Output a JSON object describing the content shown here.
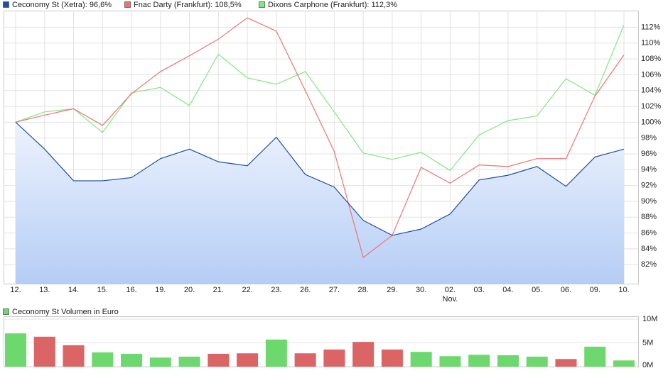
{
  "chart_data": [
    {
      "type": "line",
      "categories": [
        "12.",
        "13.",
        "14.",
        "15.",
        "16.",
        "19.",
        "20.",
        "21.",
        "22.",
        "23.",
        "26.",
        "27.",
        "28.",
        "29.",
        "30.",
        "02.",
        "03.",
        "04.",
        "05.",
        "06.",
        "09.",
        "10."
      ],
      "category_sublabels": [
        null,
        null,
        null,
        null,
        null,
        null,
        null,
        null,
        null,
        null,
        null,
        null,
        null,
        null,
        null,
        "Nov.",
        null,
        null,
        null,
        null,
        null,
        null
      ],
      "series": [
        {
          "name": "Ceconomy St (Xetra): 96,6%",
          "color": "#1f4f9e",
          "fill": true,
          "values": [
            100,
            96.6,
            92.6,
            92.6,
            93.0,
            95.4,
            96.6,
            95.0,
            94.5,
            98.1,
            93.4,
            91.8,
            87.6,
            85.7,
            86.5,
            88.4,
            92.7,
            93.3,
            94.4,
            91.9,
            95.6,
            96.6
          ]
        },
        {
          "name": "Fnac Darty (Frankfurt): 108,5%",
          "color": "#f07272",
          "fill": false,
          "values": [
            100,
            100.9,
            101.7,
            99.6,
            103.6,
            106.4,
            108.4,
            110.5,
            113.2,
            111.5,
            104.0,
            96.3,
            82.9,
            85.7,
            94.3,
            92.3,
            94.6,
            94.4,
            95.4,
            95.4,
            103.3,
            108.5
          ]
        },
        {
          "name": "Dixons Carphone (Frankfurt): 112,3%",
          "color": "#7fe87f",
          "fill": false,
          "values": [
            100,
            101.3,
            101.7,
            98.7,
            103.7,
            104.4,
            102.1,
            108.6,
            105.6,
            104.8,
            106.4,
            101.3,
            96.1,
            95.3,
            96.2,
            93.9,
            98.4,
            100.2,
            100.8,
            105.5,
            103.4,
            112.3
          ]
        }
      ],
      "ylim": [
        79.6,
        114.1
      ],
      "yticks": [
        {
          "value": 82,
          "label": "82%"
        },
        {
          "value": 84,
          "label": "84%"
        },
        {
          "value": 86,
          "label": "86%"
        },
        {
          "value": 88,
          "label": "88%"
        },
        {
          "value": 90,
          "label": "90%"
        },
        {
          "value": 92,
          "label": "92%"
        },
        {
          "value": 94,
          "label": "94%"
        },
        {
          "value": 96,
          "label": "96%"
        },
        {
          "value": 98,
          "label": "98%"
        },
        {
          "value": 100,
          "label": "100%"
        },
        {
          "value": 102,
          "label": "102%"
        },
        {
          "value": 104,
          "label": "104%"
        },
        {
          "value": 106,
          "label": "106%"
        },
        {
          "value": 108,
          "label": "108%"
        },
        {
          "value": 110,
          "label": "110%"
        },
        {
          "value": 112,
          "label": "112%"
        }
      ],
      "grid": true
    },
    {
      "type": "bar",
      "series": [
        {
          "name": "Ceconomy St Volumen in Euro",
          "color": "#6dd86d",
          "values": [
            7.0,
            6.3,
            4.5,
            3.0,
            2.7,
            1.9,
            2.1,
            2.7,
            2.8,
            5.7,
            2.8,
            3.6,
            5.2,
            3.6,
            3.1,
            2.2,
            2.5,
            2.4,
            2.1,
            1.6,
            4.2,
            1.3
          ],
          "colors": [
            "#6dd86d",
            "#db6464",
            "#db6464",
            "#6dd86d",
            "#6dd86d",
            "#6dd86d",
            "#6dd86d",
            "#db6464",
            "#db6464",
            "#6dd86d",
            "#db6464",
            "#db6464",
            "#db6464",
            "#db6464",
            "#6dd86d",
            "#6dd86d",
            "#6dd86d",
            "#6dd86d",
            "#6dd86d",
            "#db6464",
            "#6dd86d",
            "#6dd86d"
          ]
        }
      ],
      "ylim": [
        0,
        10.6
      ],
      "yticks": [
        {
          "value": 0,
          "label": "0M"
        },
        {
          "value": 5,
          "label": "5M"
        },
        {
          "value": 10,
          "label": "10M"
        }
      ],
      "grid": true
    }
  ]
}
